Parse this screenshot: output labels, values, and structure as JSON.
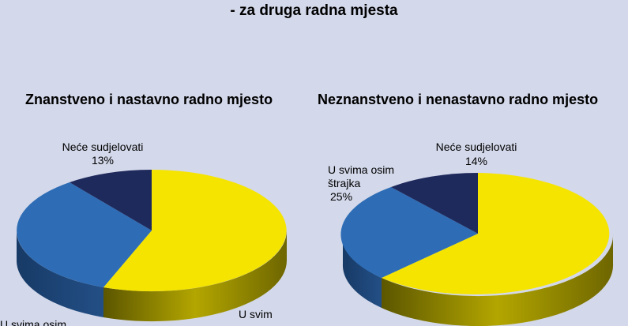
{
  "header": {
    "subtitle": "- za druga radna mjesta"
  },
  "colors": {
    "yellow": "#f5e400",
    "blue": "#2e6db5",
    "navy": "#1f2a5c",
    "background": "#d3d8ea"
  },
  "chart_data": [
    {
      "type": "pie",
      "title": "Znanstveno i nastavno radno mjesto",
      "slices": [
        {
          "label": "Neće sudjelovati",
          "value": 13,
          "display": "13%",
          "color": "#1f2a5c"
        },
        {
          "label": "U svim",
          "value": 55,
          "display": "",
          "color": "#f5e400"
        },
        {
          "label": "U svima osim",
          "value": 32,
          "display": "",
          "color": "#2e6db5"
        }
      ]
    },
    {
      "type": "pie",
      "title": "Neznanstveno i nenastavno radno mjesto",
      "slices": [
        {
          "label": "Neće sudjelovati",
          "value": 14,
          "display": "14%",
          "color": "#1f2a5c"
        },
        {
          "label": "U svima osim štrajka",
          "value": 25,
          "display": "25%",
          "color": "#2e6db5"
        },
        {
          "label": "",
          "value": 61,
          "display": "",
          "color": "#f5e400"
        }
      ]
    }
  ]
}
